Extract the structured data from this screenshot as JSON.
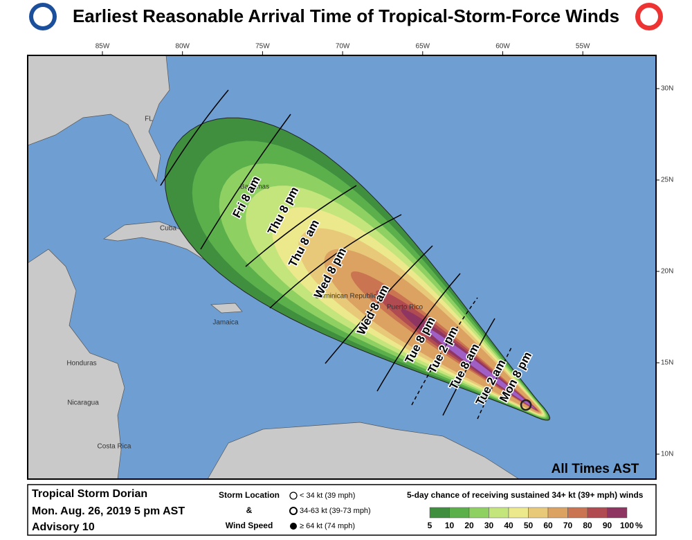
{
  "header": {
    "title": "Earliest Reasonable Arrival Time of Tropical-Storm-Force Winds"
  },
  "map": {
    "lon_labels": [
      "85W",
      "80W",
      "75W",
      "70W",
      "65W",
      "60W",
      "55W"
    ],
    "lat_labels": [
      "30N",
      "25N",
      "20N",
      "15N",
      "10N"
    ],
    "places": [
      "FL",
      "Bahamas",
      "Cuba",
      "Jamaica",
      "Dominican Republic",
      "Puerto Rico",
      "Honduras",
      "Nicaragua",
      "Costa Rica"
    ],
    "arrival_times": [
      "Fri 8 am",
      "Thu 8 pm",
      "Thu 8 am",
      "Wed 8 pm",
      "Wed 8 am",
      "Tue 8 pm",
      "Tue 2 pm",
      "Tue 8 am",
      "Tue 2 am",
      "Mon 8 pm"
    ],
    "note": "All Times AST"
  },
  "legend": {
    "storm": "Tropical Storm Dorian",
    "date": "Mon. Aug. 26, 2019  5 pm AST",
    "advisory": "Advisory 10",
    "location_title": [
      "Storm Location",
      "&",
      "Wind Speed"
    ],
    "wind_classes": [
      "< 34 kt (39 mph)",
      "34-63 kt (39-73 mph)",
      "≥ 64 kt (74 mph)"
    ],
    "scale_title": "5-day chance of receiving sustained 34+ kt (39+ mph) winds",
    "scale_ticks": [
      5,
      10,
      20,
      30,
      40,
      50,
      60,
      70,
      80,
      90,
      100
    ],
    "scale_unit": "%"
  }
}
